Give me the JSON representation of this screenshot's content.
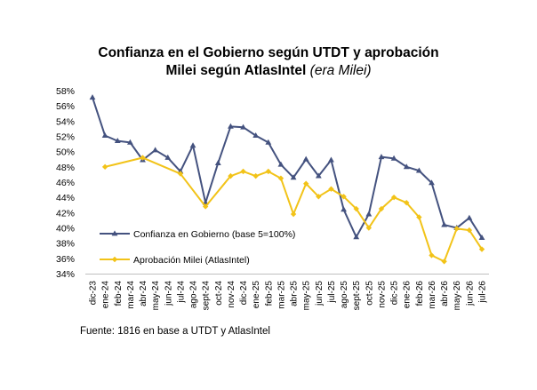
{
  "source_note": "Fuente: 1816 en base a UTDT y AtlasIntel",
  "chart_data": {
    "type": "line",
    "title_line1": "Confianza en el Gobierno según UTDT y aprobación",
    "title_line2_bold": "Milei según AtlasIntel",
    "title_line2_italic": "(era Milei)",
    "ylim": [
      34,
      58
    ],
    "yticks": [
      34,
      36,
      38,
      40,
      42,
      44,
      46,
      48,
      50,
      52,
      54,
      56,
      58
    ],
    "ytick_suffix": "%",
    "grid": false,
    "legend_position": "lower-left",
    "categories": [
      "dic-23",
      "ene-24",
      "feb-24",
      "mar-24",
      "abr-24",
      "may-24",
      "jun-24",
      "jul-24",
      "ago-24",
      "sept-24",
      "oct-24",
      "nov-24",
      "dic-24",
      "ene-25",
      "feb-25",
      "mar-25",
      "abr-25",
      "may-25",
      "jun-25",
      "jul-25",
      "ago-25",
      "sept-25",
      "oct-25",
      "nov-25",
      "dic-25",
      "ene-26",
      "feb-26",
      "mar-26",
      "abr-26",
      "may-26",
      "jun-26",
      "jul-26"
    ],
    "series": [
      {
        "name": "Confianza en Gobierno (base 5=100%)",
        "color": "#44527F",
        "marker": "triangle",
        "points": [
          [
            0,
            57.1
          ],
          [
            1,
            52.1
          ],
          [
            2,
            51.4
          ],
          [
            3,
            51.2
          ],
          [
            4,
            48.9
          ],
          [
            5,
            50.2
          ],
          [
            6,
            49.2
          ],
          [
            7,
            47.4
          ],
          [
            8,
            50.8
          ],
          [
            9,
            43.3
          ],
          [
            10,
            48.5
          ],
          [
            11,
            53.3
          ],
          [
            12,
            53.2
          ],
          [
            13,
            52.1
          ],
          [
            14,
            51.2
          ],
          [
            15,
            48.3
          ],
          [
            16,
            46.6
          ],
          [
            17,
            49.0
          ],
          [
            18,
            46.8
          ],
          [
            19,
            48.9
          ],
          [
            20,
            42.4
          ],
          [
            21,
            38.8
          ],
          [
            22,
            41.8
          ],
          [
            23,
            49.3
          ],
          [
            24,
            49.1
          ],
          [
            25,
            48.0
          ],
          [
            26,
            47.5
          ],
          [
            27,
            45.9
          ],
          [
            28,
            40.4
          ],
          [
            29,
            40.0
          ],
          [
            30,
            41.3
          ],
          [
            31,
            38.7
          ]
        ]
      },
      {
        "name": "Aprobación Milei (AtlasIntel)",
        "color": "#F2C318",
        "marker": "diamond",
        "points": [
          [
            1,
            48.0
          ],
          [
            4,
            49.2
          ],
          [
            7,
            47.1
          ],
          [
            9,
            42.8
          ],
          [
            11,
            46.8
          ],
          [
            12,
            47.4
          ],
          [
            13,
            46.8
          ],
          [
            14,
            47.4
          ],
          [
            15,
            46.5
          ],
          [
            16,
            41.8
          ],
          [
            17,
            45.8
          ],
          [
            18,
            44.1
          ],
          [
            19,
            45.1
          ],
          [
            20,
            44.1
          ],
          [
            21,
            42.5
          ],
          [
            22,
            40.0
          ],
          [
            23,
            42.5
          ],
          [
            24,
            44.0
          ],
          [
            25,
            43.3
          ],
          [
            26,
            41.4
          ],
          [
            27,
            36.4
          ],
          [
            28,
            35.6
          ],
          [
            29,
            39.9
          ],
          [
            30,
            39.7
          ],
          [
            31,
            37.2
          ]
        ]
      }
    ]
  }
}
